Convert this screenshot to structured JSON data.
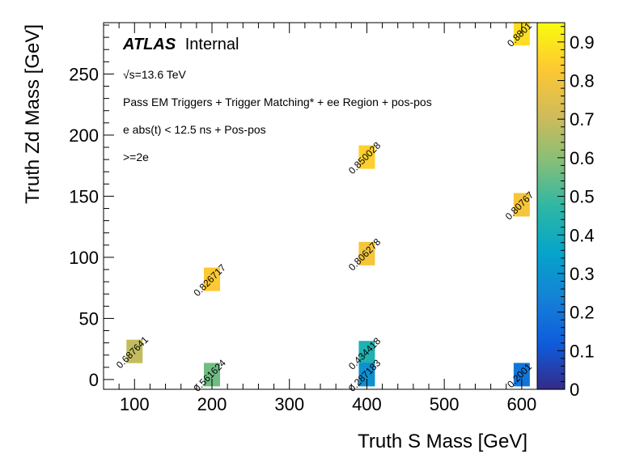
{
  "chart_data": {
    "type": "heatmap",
    "title": "",
    "xlabel": "Truth S Mass [GeV]",
    "ylabel": "Truth Zd Mass [GeV]",
    "xlim": [
      60,
      620
    ],
    "ylim": [
      -8,
      292
    ],
    "zlim": [
      0,
      0.95
    ],
    "x_ticks": [
      "100",
      "200",
      "300",
      "400",
      "500",
      "600"
    ],
    "x_tick_values": [
      100,
      200,
      300,
      400,
      500,
      600
    ],
    "y_ticks": [
      "0",
      "50",
      "100",
      "150",
      "200",
      "250"
    ],
    "y_tick_values": [
      0,
      50,
      100,
      150,
      200,
      250
    ],
    "z_ticks": [
      "0",
      "0.1",
      "0.2",
      "0.3",
      "0.4",
      "0.5",
      "0.6",
      "0.7",
      "0.8",
      "0.9"
    ],
    "z_tick_values": [
      0,
      0.1,
      0.2,
      0.3,
      0.4,
      0.5,
      0.6,
      0.7,
      0.8,
      0.9
    ],
    "cells": [
      {
        "x": 100,
        "y": 23,
        "value": 0.687641,
        "label": "0.687641"
      },
      {
        "x": 200,
        "y": 4,
        "value": 0.561624,
        "label": "0.561624"
      },
      {
        "x": 200,
        "y": 82,
        "value": 0.826717,
        "label": "0.826717"
      },
      {
        "x": 400,
        "y": 22,
        "value": 0.434418,
        "label": "0.434418"
      },
      {
        "x": 400,
        "y": 4,
        "value": 0.287183,
        "label": "0.287183"
      },
      {
        "x": 400,
        "y": 103,
        "value": 0.806278,
        "label": "0.806278"
      },
      {
        "x": 400,
        "y": 182,
        "value": 0.850028,
        "label": "0.850028"
      },
      {
        "x": 600,
        "y": 143,
        "value": 0.80767,
        "label": "0.80767"
      },
      {
        "x": 600,
        "y": 283,
        "value": 0.8801,
        "label": "0.8801"
      },
      {
        "x": 600,
        "y": 4,
        "value": 0.2001,
        "label": "0.2001"
      }
    ]
  },
  "annotations": {
    "atlas": "ATLAS",
    "internal": "Internal",
    "sqrt_s": "√s=13.6 TeV",
    "line1": "Pass EM Triggers + Trigger Matching* + ee Region + pos-pos",
    "line2": "e abs(t) < 12.5 ns + Pos-pos",
    "line3": ">=2e"
  },
  "colors": {
    "palette": [
      "#352a87",
      "#0f5cdd",
      "#1481d6",
      "#06a4ca",
      "#2eb7a4",
      "#87bf77",
      "#d1bb59",
      "#fec832",
      "#f9fb0e"
    ]
  }
}
